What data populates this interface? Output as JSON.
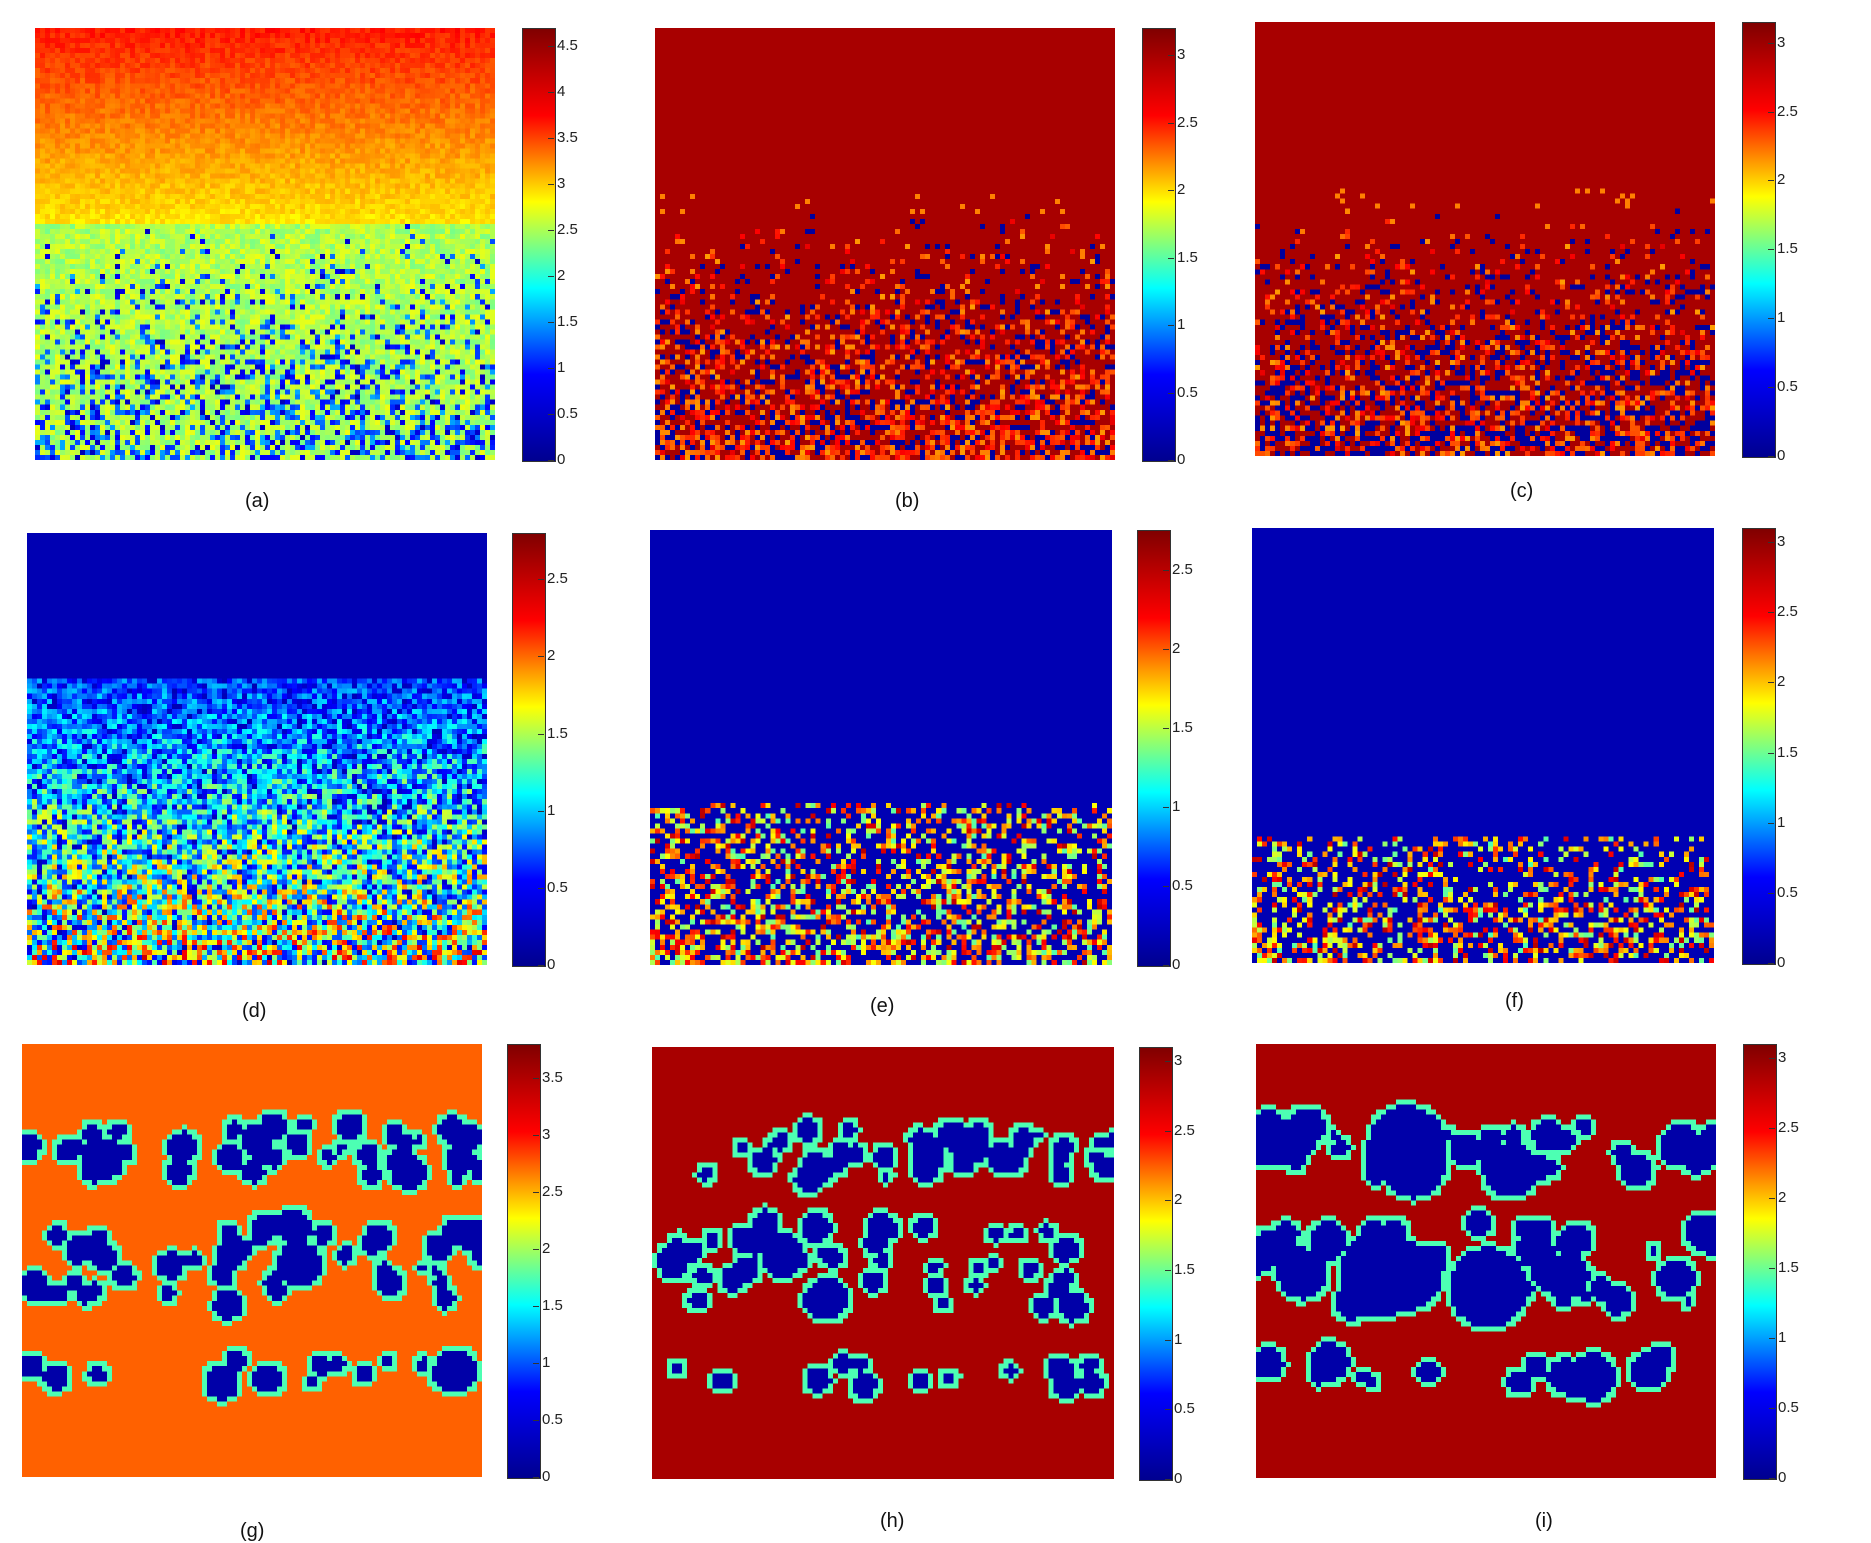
{
  "figure": {
    "colormap": "jet",
    "colormap_stops": [
      "#00008f",
      "#0000ff",
      "#00ffff",
      "#ffff00",
      "#ff0000",
      "#800000"
    ],
    "panels": [
      {
        "id": "a",
        "caption": "(a)",
        "cmax": 4.7,
        "ticks": [
          "0",
          "0.5",
          "1",
          "1.5",
          "2",
          "2.5",
          "3",
          "3.5",
          "4",
          "4.5"
        ],
        "pattern": "gradient-top-red"
      },
      {
        "id": "b",
        "caption": "(b)",
        "cmax": 3.2,
        "ticks": [
          "0",
          "0.5",
          "1",
          "1.5",
          "2",
          "2.5",
          "3"
        ],
        "pattern": "red-top-speckle"
      },
      {
        "id": "c",
        "caption": "(c)",
        "cmax": 3.15,
        "ticks": [
          "0",
          "0.5",
          "1",
          "1.5",
          "2",
          "2.5",
          "3"
        ],
        "pattern": "red-top-speckle-blue"
      },
      {
        "id": "d",
        "caption": "(d)",
        "cmax": 2.8,
        "ticks": [
          "0",
          "0.5",
          "1",
          "1.5",
          "2",
          "2.5"
        ],
        "pattern": "blue-top-noise"
      },
      {
        "id": "e",
        "caption": "(e)",
        "cmax": 2.75,
        "ticks": [
          "0",
          "0.5",
          "1",
          "1.5",
          "2",
          "2.5"
        ],
        "pattern": "blue-top-clusters"
      },
      {
        "id": "f",
        "caption": "(f)",
        "cmax": 3.1,
        "ticks": [
          "0",
          "0.5",
          "1",
          "1.5",
          "2",
          "2.5",
          "3"
        ],
        "pattern": "blue-top-clusters-sparse"
      },
      {
        "id": "g",
        "caption": "(g)",
        "cmax": 3.8,
        "ticks": [
          "0",
          "0.5",
          "1",
          "1.5",
          "2",
          "2.5",
          "3",
          "3.5"
        ],
        "pattern": "bands-orange"
      },
      {
        "id": "h",
        "caption": "(h)",
        "cmax": 3.1,
        "ticks": [
          "0",
          "0.5",
          "1",
          "1.5",
          "2",
          "2.5",
          "3"
        ],
        "pattern": "bands-darkred"
      },
      {
        "id": "i",
        "caption": "(i)",
        "cmax": 3.1,
        "ticks": [
          "0",
          "0.5",
          "1",
          "1.5",
          "2",
          "2.5",
          "3"
        ],
        "pattern": "bands-darkred-large"
      }
    ]
  },
  "chart_data": [
    {
      "type": "heatmap",
      "title": "(a)",
      "colorbar_range": [
        0,
        4.7
      ],
      "colorbar_ticks": [
        0,
        0.5,
        1,
        1.5,
        2,
        2.5,
        3,
        3.5,
        4,
        4.5
      ]
    },
    {
      "type": "heatmap",
      "title": "(b)",
      "colorbar_range": [
        0,
        3.2
      ],
      "colorbar_ticks": [
        0,
        0.5,
        1,
        1.5,
        2,
        2.5,
        3
      ]
    },
    {
      "type": "heatmap",
      "title": "(c)",
      "colorbar_range": [
        0,
        3.15
      ],
      "colorbar_ticks": [
        0,
        0.5,
        1,
        1.5,
        2,
        2.5,
        3
      ]
    },
    {
      "type": "heatmap",
      "title": "(d)",
      "colorbar_range": [
        0,
        2.8
      ],
      "colorbar_ticks": [
        0,
        0.5,
        1,
        1.5,
        2,
        2.5
      ]
    },
    {
      "type": "heatmap",
      "title": "(e)",
      "colorbar_range": [
        0,
        2.75
      ],
      "colorbar_ticks": [
        0,
        0.5,
        1,
        1.5,
        2,
        2.5
      ]
    },
    {
      "type": "heatmap",
      "title": "(f)",
      "colorbar_range": [
        0,
        3.1
      ],
      "colorbar_ticks": [
        0,
        0.5,
        1,
        1.5,
        2,
        2.5,
        3
      ]
    },
    {
      "type": "heatmap",
      "title": "(g)",
      "colorbar_range": [
        0,
        3.8
      ],
      "colorbar_ticks": [
        0,
        0.5,
        1,
        1.5,
        2,
        2.5,
        3,
        3.5
      ]
    },
    {
      "type": "heatmap",
      "title": "(h)",
      "colorbar_range": [
        0,
        3.1
      ],
      "colorbar_ticks": [
        0,
        0.5,
        1,
        1.5,
        2,
        2.5,
        3
      ]
    },
    {
      "type": "heatmap",
      "title": "(i)",
      "colorbar_range": [
        0,
        3.1
      ],
      "colorbar_ticks": [
        0,
        0.5,
        1,
        1.5,
        2,
        2.5,
        3
      ]
    }
  ]
}
